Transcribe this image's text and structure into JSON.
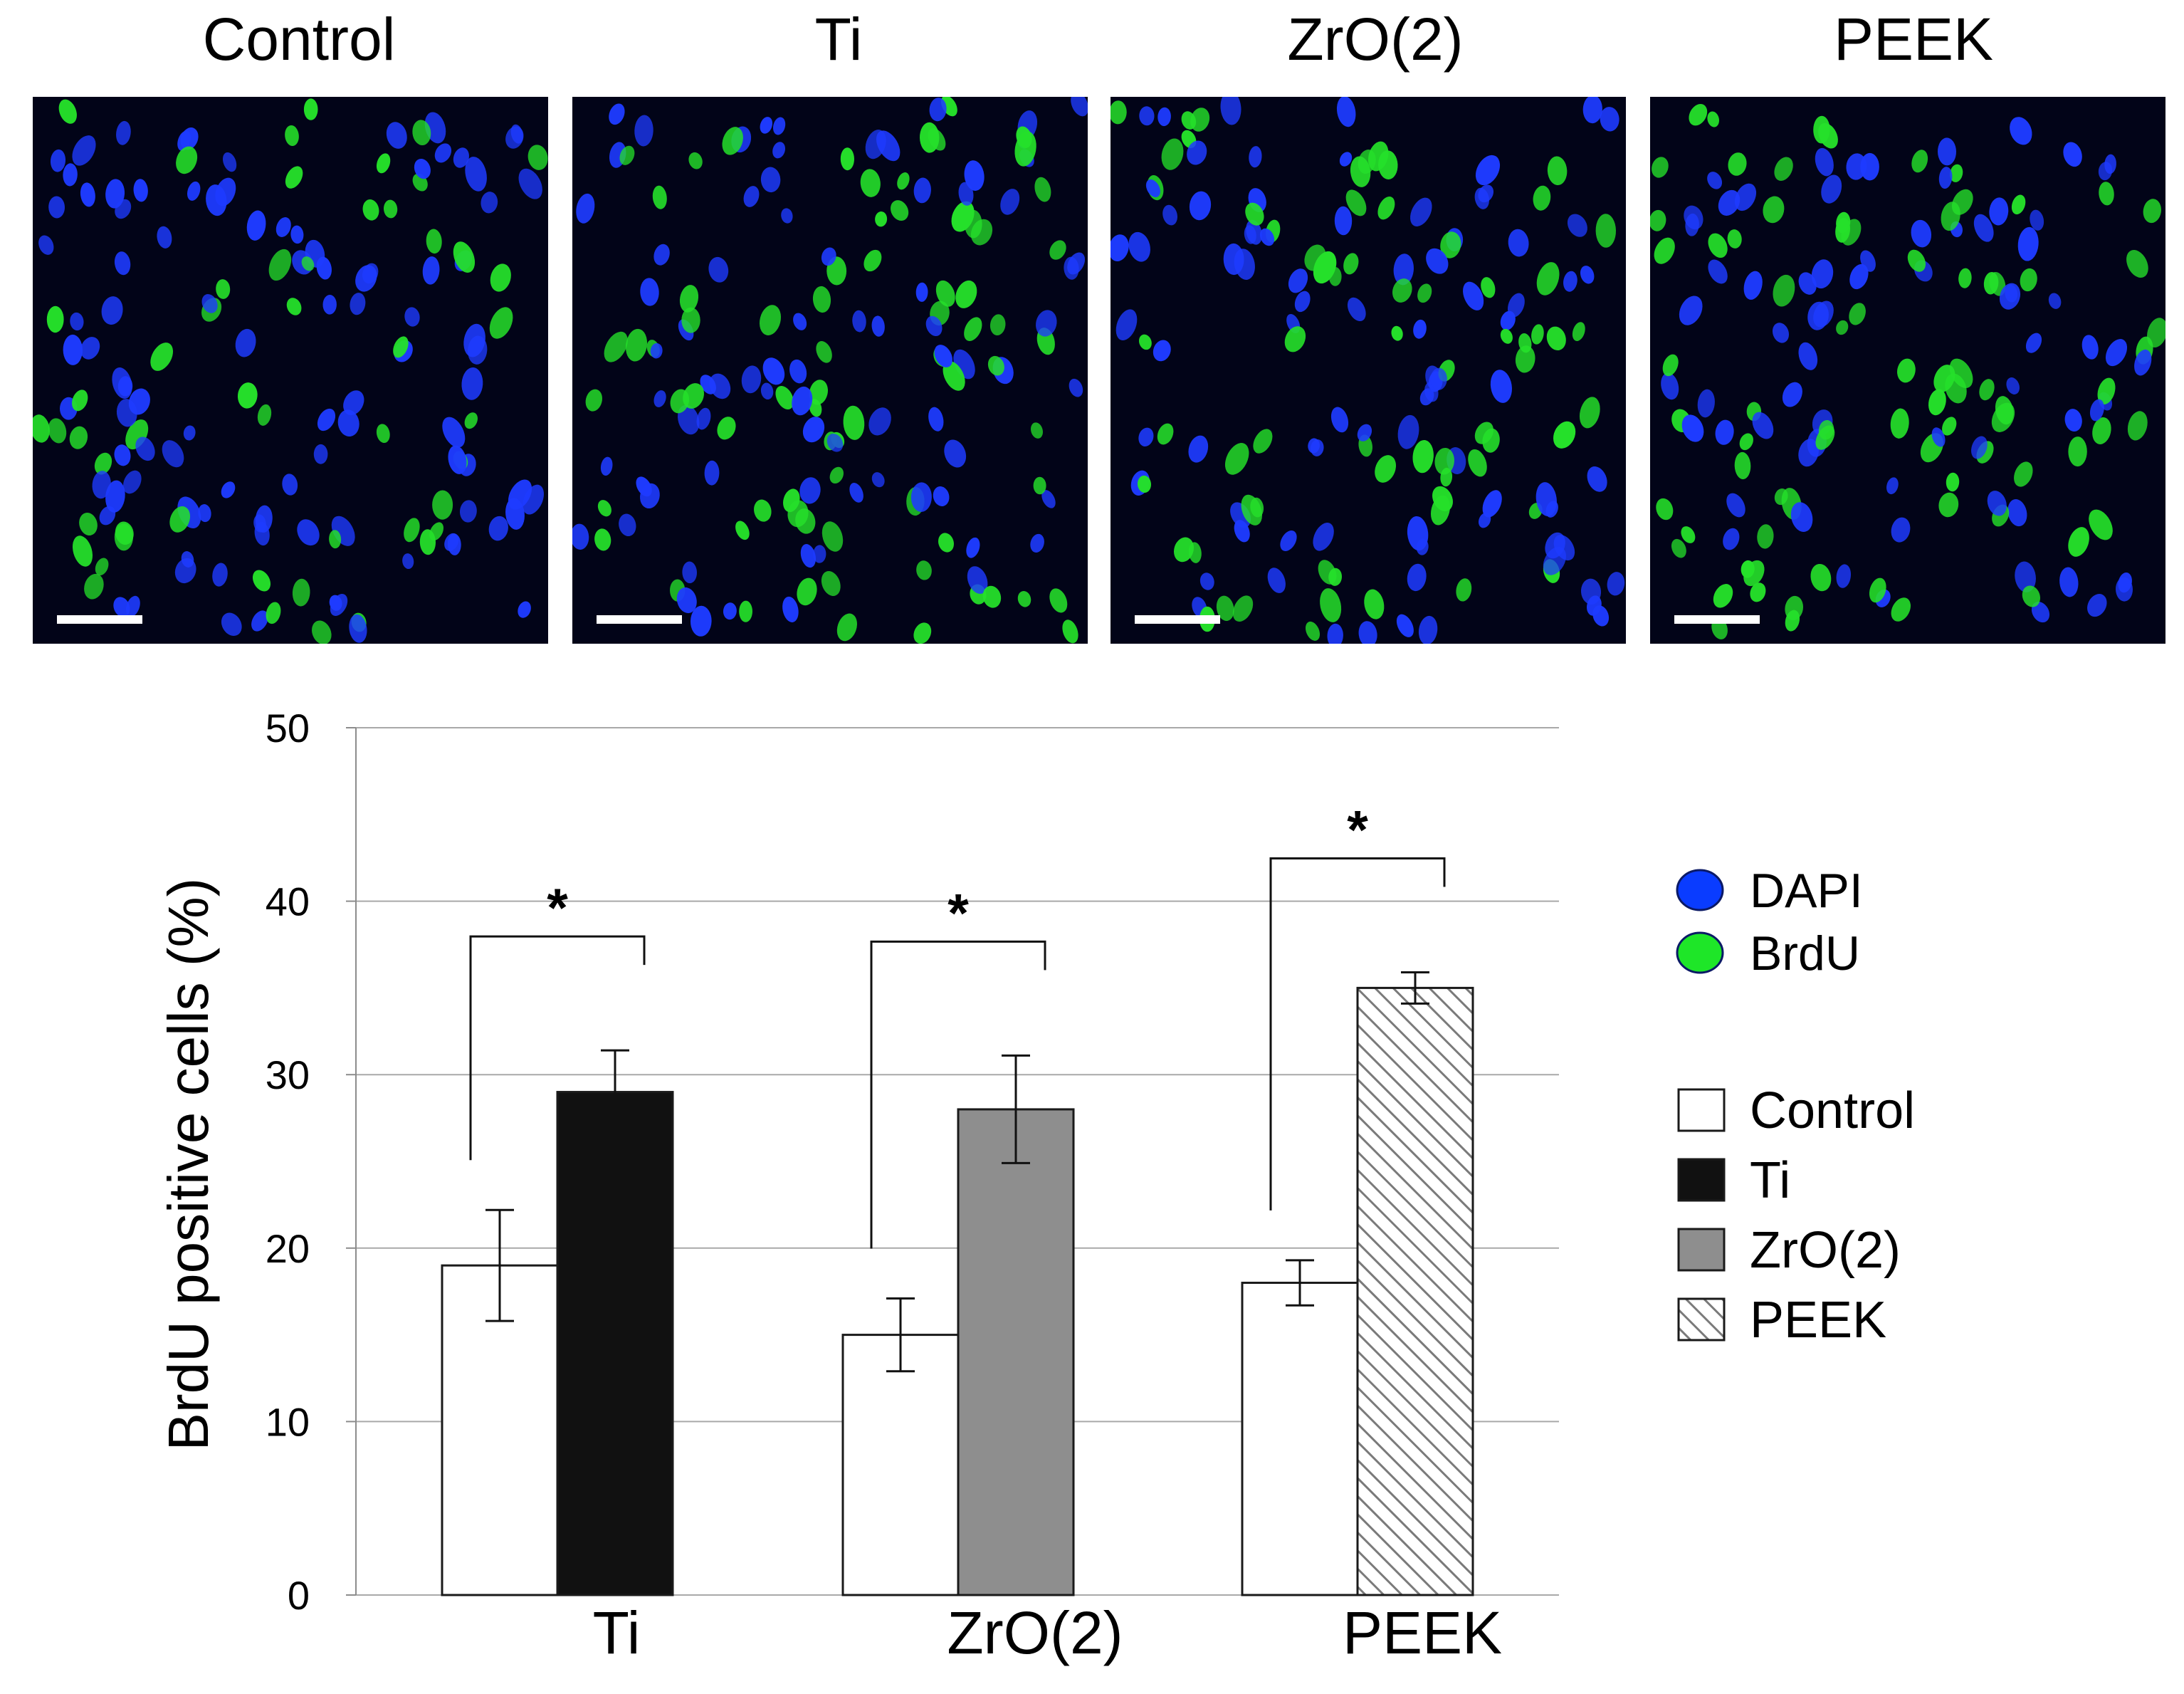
{
  "panels": [
    {
      "title": "Control",
      "brdu_fraction": 0.19
    },
    {
      "title": "Ti",
      "brdu_fraction": 0.29
    },
    {
      "title": "ZrO(2)",
      "brdu_fraction": 0.28
    },
    {
      "title": "PEEK",
      "brdu_fraction": 0.35
    }
  ],
  "micrograph_colors": {
    "background": "#020418",
    "dapi": "#1e3bff",
    "brdu": "#25e02a",
    "scale_bar": "#ffffff"
  },
  "legend": {
    "stain_entries": [
      {
        "label": "DAPI",
        "color": "#0a3cff"
      },
      {
        "label": "BrdU",
        "color": "#1ee628"
      }
    ],
    "bar_entries": [
      {
        "label": "Control",
        "fill": "#ffffff",
        "pattern": "none"
      },
      {
        "label": "Ti",
        "fill": "#111111",
        "pattern": "none"
      },
      {
        "label": "ZrO(2)",
        "fill": "#8e8e8e",
        "pattern": "none"
      },
      {
        "label": "PEEK",
        "fill": "#ffffff",
        "pattern": "diagonal-hatch"
      }
    ]
  },
  "chart_data": {
    "type": "bar",
    "title": "",
    "xlabel": "",
    "ylabel": "BrdU positive cells (%)",
    "ylim": [
      0,
      50
    ],
    "yticks": [
      "0",
      "10",
      "20",
      "30",
      "40",
      "50"
    ],
    "grid": true,
    "categories": [
      "Ti",
      "ZrO(2)",
      "PEEK"
    ],
    "groups": [
      {
        "category": "Ti",
        "bars": [
          {
            "series": "Control",
            "value": 19,
            "error": 3.2
          },
          {
            "series": "Ti",
            "value": 29,
            "error": 2.4
          }
        ],
        "significance": "*"
      },
      {
        "category": "ZrO(2)",
        "bars": [
          {
            "series": "Control",
            "value": 15,
            "error": 2.1
          },
          {
            "series": "ZrO(2)",
            "value": 28,
            "error": 3.1
          }
        ],
        "significance": "*"
      },
      {
        "category": "PEEK",
        "bars": [
          {
            "series": "Control",
            "value": 18,
            "error": 1.3
          },
          {
            "series": "PEEK",
            "value": 35,
            "error": 0.9
          }
        ],
        "significance": "*"
      }
    ]
  }
}
